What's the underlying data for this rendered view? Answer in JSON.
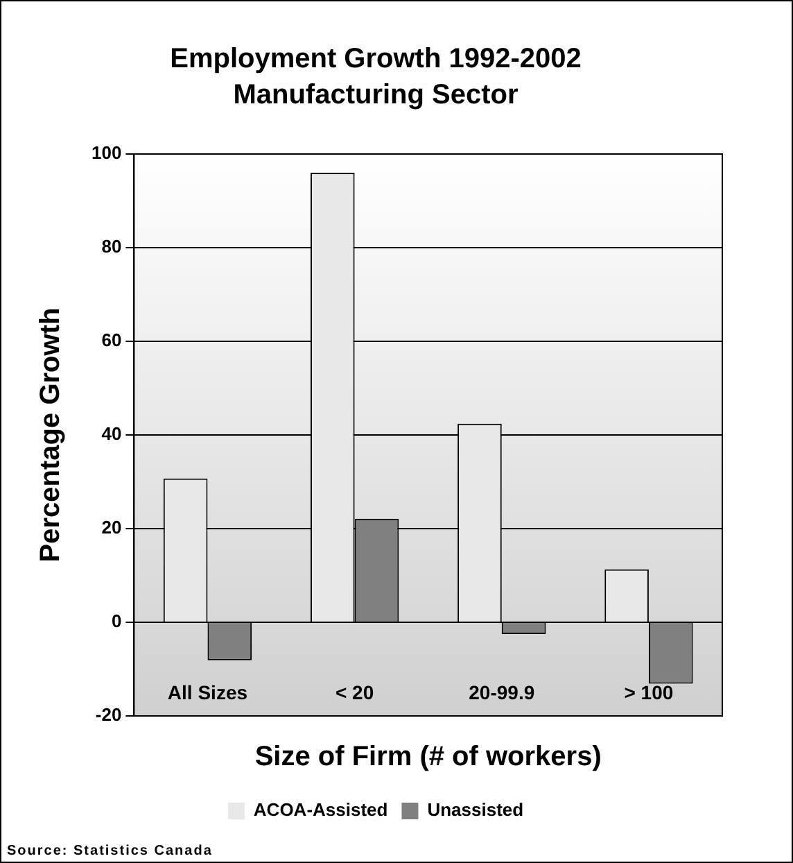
{
  "chart_data": {
    "type": "bar",
    "title": "Employment Growth 1992-2002",
    "subtitle": "Manufacturing Sector",
    "xlabel": "Size of Firm (# of workers)",
    "ylabel": "Percentage Growth",
    "categories": [
      "All Sizes",
      "< 20",
      "20-99.9",
      "> 100"
    ],
    "series": [
      {
        "name": "ACOA-Assisted",
        "color": "#e8e8e8",
        "values": [
          30.7,
          96,
          42.4,
          11.3
        ]
      },
      {
        "name": "Unassisted",
        "color": "#808080",
        "values": [
          -8.1,
          22.1,
          -2.5,
          -13.1
        ]
      }
    ],
    "ylim": [
      -20,
      100
    ],
    "yticks": [
      -20,
      0,
      20,
      40,
      60,
      80,
      100
    ],
    "grid": "y",
    "legend": "bottom",
    "annotations": [
      "Source:  Statistics Canada"
    ]
  }
}
